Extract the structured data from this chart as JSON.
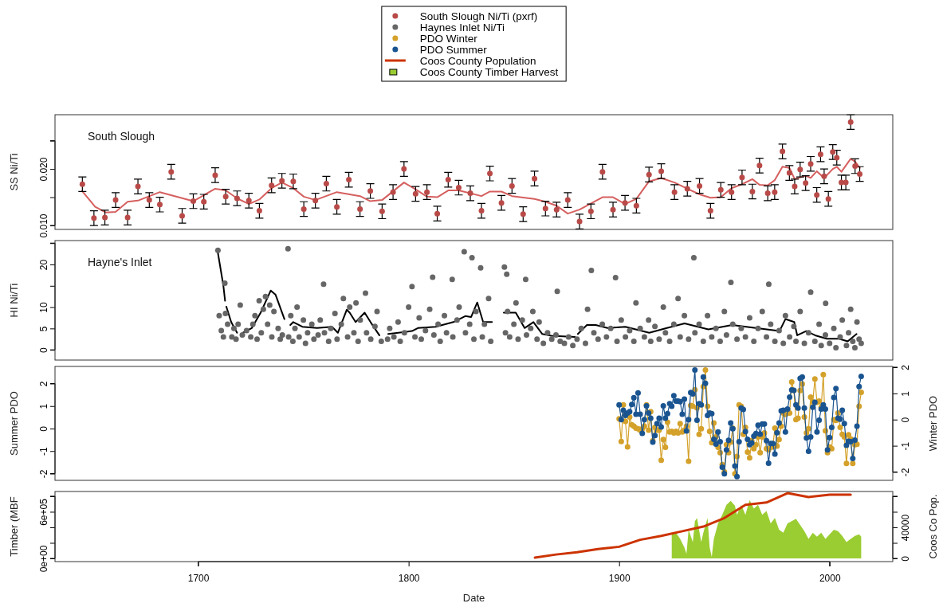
{
  "chart_data": [
    {
      "type": "scatter",
      "ylabel": "SS Ni/Ti",
      "annotations": [
        "South Slough"
      ],
      "legend": "top",
      "tick_labels": "y",
      "xlim": [
        1632,
        2030
      ],
      "ylim": [
        0.0093,
        0.0296
      ],
      "yticks": [
        {
          "value": 0.01,
          "label": "0.010"
        },
        {
          "value": 0.015,
          "label": null
        },
        {
          "value": 0.02,
          "label": "0.020"
        },
        {
          "value": 0.025,
          "label": null
        }
      ],
      "series": [
        {
          "name": "South Slough Ni/Ti (pxrf)",
          "color": "#b94a48",
          "x": [
            1645,
            1650.5,
            1655.7,
            1660.8,
            1666.5,
            1671.4,
            1676.8,
            1681.8,
            1687.2,
            1692.4,
            1697.7,
            1702.7,
            1708.1,
            1713.1,
            1718.5,
            1724.1,
            1729.1,
            1734.9,
            1739.8,
            1745.2,
            1750.2,
            1755.7,
            1760.9,
            1765.9,
            1771.6,
            1776.9,
            1781.8,
            1787.4,
            1792.6,
            1797.8,
            1803.3,
            1808.7,
            1813.6,
            1818.8,
            1823.8,
            1829.3,
            1834.6,
            1838.6,
            1844.1,
            1849.1,
            1854.4,
            1859.8,
            1865.0,
            1870.3,
            1875.6,
            1881.2,
            1886.6,
            1892.1,
            1897.1,
            1902.8,
            1908.2,
            1914.2,
            1920.0,
            1926.3,
            1932.4,
            1938.2,
            1943.4,
            1948.3,
            1953.4,
            1958.4,
            1963.3,
            1966.7,
            1970.6,
            1973.9,
            1977.6,
            1980.9,
            1983.4,
            1986.0,
            1988.6,
            1991.0,
            1993.9,
            1995.7,
            1997.4,
            1999.4,
            2001.5,
            2003.4,
            2005.6,
            2007.7,
            2010.0,
            2012.1,
            2014.3
          ],
          "values": [
            0.0173,
            0.0113,
            0.0114,
            0.0145,
            0.0114,
            0.0169,
            0.0145,
            0.0137,
            0.0195,
            0.0117,
            0.0143,
            0.0142,
            0.0189,
            0.0151,
            0.0148,
            0.0144,
            0.0126,
            0.0171,
            0.0179,
            0.0178,
            0.0129,
            0.0144,
            0.0174,
            0.0133,
            0.0181,
            0.0129,
            0.0161,
            0.0125,
            0.0159,
            0.02,
            0.0156,
            0.0159,
            0.0121,
            0.0181,
            0.0167,
            0.0157,
            0.0126,
            0.0192,
            0.014,
            0.017,
            0.012,
            0.0183,
            0.013,
            0.0128,
            0.0145,
            0.0107,
            0.0125,
            0.0195,
            0.0128,
            0.014,
            0.0135,
            0.019,
            0.0196,
            0.0159,
            0.0165,
            0.017,
            0.0126,
            0.0163,
            0.0159,
            0.0185,
            0.016,
            0.0206,
            0.0157,
            0.0159,
            0.0231,
            0.0193,
            0.0169,
            0.0199,
            0.0175,
            0.0209,
            0.0154,
            0.0226,
            0.0187,
            0.0147,
            0.023,
            0.022,
            0.0176,
            0.0176,
            0.0283,
            0.0205,
            0.0191
          ],
          "errors": [
            0.0013,
            0.0013,
            0.0013,
            0.0013,
            0.0013,
            0.0013,
            0.0013,
            0.0013,
            0.0013,
            0.0013,
            0.0013,
            0.0013,
            0.0013,
            0.0013,
            0.0013,
            0.0013,
            0.0013,
            0.0013,
            0.0013,
            0.0013,
            0.0013,
            0.0013,
            0.0013,
            0.0013,
            0.0013,
            0.0013,
            0.0013,
            0.0013,
            0.0013,
            0.0013,
            0.0013,
            0.0013,
            0.0013,
            0.0013,
            0.0013,
            0.0013,
            0.0013,
            0.0013,
            0.0013,
            0.0013,
            0.0013,
            0.0013,
            0.0013,
            0.0013,
            0.0013,
            0.0013,
            0.0013,
            0.0013,
            0.0013,
            0.0013,
            0.0013,
            0.0013,
            0.0013,
            0.0013,
            0.0013,
            0.0013,
            0.0013,
            0.0013,
            0.0013,
            0.0013,
            0.0013,
            0.0013,
            0.0013,
            0.0013,
            0.0013,
            0.0013,
            0.0013,
            0.0013,
            0.0013,
            0.0013,
            0.0013,
            0.0013,
            0.0013,
            0.0013,
            0.0013,
            0.0013,
            0.0013,
            0.0013,
            0.0013,
            0.0013,
            0.0013
          ]
        },
        {
          "type": "line",
          "color": "#d65f5f",
          "x": [
            1644.9,
            1651.1,
            1656.1,
            1660.8,
            1666.5,
            1671.4,
            1681.8,
            1697.7,
            1708.1,
            1713.1,
            1718.5,
            1724.1,
            1729.1,
            1734.9,
            1739.8,
            1745.2,
            1750.2,
            1755.7,
            1765.9,
            1776.9,
            1781.8,
            1787.4,
            1797.8,
            1803.3,
            1808.7,
            1813.6,
            1818.8,
            1823.8,
            1834.6,
            1838.6,
            1844.1,
            1849.1,
            1859.8,
            1865.0,
            1870.3,
            1875.6,
            1881.2,
            1892.1,
            1897.1,
            1902.8,
            1908.2,
            1914.2,
            1920.0,
            1926.3,
            1932.4,
            1938.2,
            1943.4,
            1948.3,
            1953.4,
            1958.4,
            1963.3,
            1966.7,
            1970.6,
            1973.9,
            1977.6,
            1980.9,
            1983.4,
            1988.6,
            1991.0,
            1993.9,
            1997.4,
            2001.5,
            2003.4,
            2005.6,
            2007.7,
            2010.0,
            2012.1,
            2014.3
          ],
          "values": [
            0.0161,
            0.0133,
            0.0123,
            0.0124,
            0.0142,
            0.0144,
            0.0159,
            0.0143,
            0.0165,
            0.0162,
            0.0148,
            0.0138,
            0.0146,
            0.0166,
            0.0176,
            0.0166,
            0.0151,
            0.0145,
            0.0159,
            0.0152,
            0.0143,
            0.0145,
            0.0176,
            0.0164,
            0.0151,
            0.015,
            0.0162,
            0.0162,
            0.0152,
            0.016,
            0.016,
            0.0152,
            0.0147,
            0.0142,
            0.0135,
            0.0121,
            0.0128,
            0.015,
            0.015,
            0.0138,
            0.0147,
            0.0178,
            0.0184,
            0.0176,
            0.0165,
            0.0155,
            0.0149,
            0.015,
            0.0166,
            0.0173,
            0.0182,
            0.0172,
            0.0171,
            0.018,
            0.0204,
            0.0202,
            0.0182,
            0.0188,
            0.0184,
            0.0196,
            0.0184,
            0.02,
            0.0204,
            0.0195,
            0.0206,
            0.0218,
            0.0213,
            0.0202
          ]
        }
      ]
    },
    {
      "type": "scatter",
      "ylabel": "HI Ni/Ti",
      "annotations": [
        "Hayne's Inlet"
      ],
      "legend": "top",
      "tick_labels": "y",
      "xlim": [
        1632,
        2030
      ],
      "ylim": [
        -2.4,
        25.6
      ],
      "yticks": [
        0,
        5,
        10,
        {
          "value": 15,
          "label": null
        },
        20,
        {
          "value": 25,
          "label": null
        }
      ],
      "series": [
        {
          "name": "Haynes Inlet Ni/Ti",
          "color": "#666666",
          "x": [
            1709.4,
            1710,
            1711,
            1712,
            1712.7,
            1713,
            1714,
            1716,
            1717,
            1718,
            1719,
            1720,
            1721,
            1723,
            1725,
            1726,
            1727,
            1728,
            1729,
            1730,
            1731,
            1732,
            1733,
            1734,
            1735,
            1736,
            1738,
            1739,
            1740,
            1742.7,
            1743,
            1744,
            1745,
            1746,
            1747,
            1748,
            1750,
            1751,
            1752,
            1754,
            1755,
            1757,
            1758,
            1759.6,
            1760,
            1762,
            1763,
            1765,
            1766,
            1768,
            1769,
            1771,
            1772,
            1774,
            1775,
            1776,
            1777,
            1779.5,
            1780,
            1782,
            1784,
            1785,
            1787,
            1790,
            1791,
            1793,
            1795,
            1796,
            1798,
            1800,
            1801.6,
            1803,
            1805,
            1806,
            1808,
            1810,
            1811.4,
            1812,
            1814,
            1815,
            1817,
            1818,
            1820.7,
            1821,
            1823,
            1824,
            1826.4,
            1827,
            1829,
            1830.1,
            1831,
            1832,
            1834.2,
            1835,
            1836,
            1838,
            1839,
            1845.5,
            1846,
            1846.6,
            1847,
            1848,
            1850,
            1851,
            1852,
            1854,
            1855.6,
            1856,
            1858,
            1859,
            1861,
            1862,
            1864,
            1866,
            1868,
            1870,
            1870.6,
            1872,
            1874,
            1876,
            1878,
            1880,
            1882,
            1884,
            1885,
            1886.8,
            1888,
            1890,
            1892,
            1894,
            1896,
            1898.3,
            1899,
            1901,
            1903,
            1905,
            1907,
            1908,
            1910,
            1912,
            1914,
            1915,
            1917,
            1919,
            1921,
            1922,
            1924,
            1926,
            1928,
            1929,
            1931,
            1933,
            1935.5,
            1936,
            1938,
            1940,
            1942,
            1944,
            1946,
            1948,
            1950,
            1951,
            1953.1,
            1954,
            1956,
            1958,
            1960,
            1962,
            1964,
            1966,
            1968,
            1970,
            1971.1,
            1972,
            1974,
            1976,
            1978,
            1979,
            1981,
            1983,
            1984,
            1986,
            1988,
            1990,
            1991,
            1993,
            1995,
            1996,
            1998,
            1998.1,
            2000,
            2002,
            2003,
            2005,
            2006,
            2008,
            2009,
            2010,
            2011,
            2012,
            2013,
            2014,
            2015
          ],
          "values": [
            23.3,
            8,
            4.5,
            3,
            15.6,
            8.5,
            6,
            3,
            5,
            2.5,
            6,
            10.5,
            3.5,
            4.5,
            3,
            6,
            8,
            2.5,
            11.5,
            4,
            9.5,
            12.5,
            6,
            10.5,
            3,
            9,
            5,
            2.5,
            3.5,
            23.7,
            3,
            8,
            2,
            5,
            10,
            3,
            7,
            1.5,
            4,
            6,
            2.5,
            3.5,
            7,
            15.4,
            4,
            2,
            5,
            8.5,
            2.5,
            6,
            12,
            3,
            10,
            4,
            11,
            2,
            7,
            13.3,
            4,
            2.5,
            5.5,
            9,
            2,
            2.5,
            5,
            3,
            6.5,
            2,
            4,
            10,
            14.8,
            3,
            7.5,
            2.5,
            4.5,
            9.5,
            17,
            3.5,
            6,
            2,
            8,
            4,
            16.5,
            3,
            7,
            10,
            23,
            4,
            6,
            21.6,
            2.5,
            9,
            19.2,
            3,
            6,
            12,
            2,
            19.4,
            4,
            17.7,
            9,
            3,
            6,
            11,
            2.5,
            7,
            16.5,
            3.5,
            5,
            9,
            2.5,
            6.5,
            1.5,
            4,
            2.5,
            3.5,
            13.7,
            2,
            1.5,
            3,
            1,
            2.5,
            5,
            1.5,
            9.5,
            18.6,
            4,
            2.5,
            6,
            3,
            5,
            16.9,
            2,
            7,
            3,
            4.5,
            2,
            11,
            5,
            3,
            7,
            2,
            5.5,
            2.5,
            10,
            4,
            2,
            6,
            12,
            3,
            8,
            2.5,
            21.6,
            4,
            6,
            2,
            8,
            3,
            5,
            2,
            9,
            3.5,
            15.8,
            6,
            2.5,
            5,
            3,
            7.5,
            2,
            5,
            9,
            3,
            15.4,
            6,
            2,
            4.5,
            1.5,
            8,
            3,
            5.5,
            2,
            9,
            1.5,
            4,
            13.5,
            2,
            6,
            1,
            3.5,
            10.9,
            1.5,
            5,
            0.5,
            3,
            7,
            1,
            4,
            9.5,
            2,
            0.5,
            6.5,
            2.5,
            1.5
          ]
        },
        {
          "type": "line",
          "color": "#000000",
          "x": [
            1709.2,
            1712.0,
            1712.8,
            1713.1,
            1713.4,
            1715.7,
            1718.5,
            1720,
            1721.3,
            1725.5,
            1729.7,
            1734.5,
            1736.8,
            1741.0,
            1742.5,
            1743.8,
            1745.2,
            1749.5,
            1756.5,
            1763.6,
            1766.4,
            1770.6,
            1772.0,
            1774.8,
            1779.1,
            1781.9,
            1786.1,
            1788,
            1790.3,
            1801.6,
            1804.4,
            1812.8,
            1821.3,
            1826.9,
            1829.7,
            1832.6,
            1835.4,
            1839.6,
            1842,
            1845.2,
            1850.9,
            1855.1,
            1859.3,
            1863.5,
            1867.8,
            1879.0,
            1879.7,
            1880.4,
            1884.7,
            1888.9,
            1894.5,
            1903.0,
            1914.3,
            1922.7,
            1931.1,
            1942.4,
            1953.7,
            1964.9,
            1976.2,
            1979.0,
            1983.2,
            1984.6,
            1988.9,
            1993.1,
            1998.7,
            2004.4,
            2008.6,
            2012.8
          ],
          "values": [
            23.3,
            15.0,
            11.5,
            null,
            10.1,
            6.5,
            4.0,
            null,
            4.0,
            5.1,
            8.7,
            13.9,
            12.9,
            7.2,
            null,
            5.8,
            6.5,
            5.4,
            5.1,
            5.4,
            4.0,
            9.4,
            8.7,
            6.5,
            8.7,
            6.5,
            3.4,
            null,
            3.7,
            4.4,
            5.1,
            5.4,
            6.5,
            7.9,
            7.7,
            11.1,
            6.5,
            6.5,
            null,
            8.7,
            8.7,
            5.1,
            6.5,
            3.7,
            3.3,
            3.0,
            null,
            3.7,
            5.8,
            5.8,
            5.1,
            5.4,
            4.0,
            5.1,
            6.2,
            4.8,
            5.8,
            5.1,
            4.4,
            7.2,
            6.5,
            3.4,
            4.4,
            3.4,
            2.6,
            2.6,
            2.0,
            3.7
          ]
        }
      ]
    },
    {
      "type": "line",
      "ylabel": "Summer PDO",
      "y2label": "Winter PDO",
      "legend": "top",
      "marker": "circle",
      "tick_labels": "y",
      "xlim": [
        1632,
        2030
      ],
      "ylim": [
        -2.3,
        2.76
      ],
      "yticks": [
        -2,
        -1,
        0,
        1,
        2
      ],
      "y2lim": [
        -2.32,
        2.03
      ],
      "y2ticks": [
        -2,
        -1,
        0,
        1,
        2
      ],
      "x": [
        1900,
        1901,
        1902,
        1903,
        1904,
        1905,
        1906,
        1907,
        1908,
        1909,
        1910,
        1911,
        1912,
        1913,
        1914,
        1915,
        1916,
        1917,
        1918,
        1919,
        1920,
        1921,
        1922,
        1923,
        1924,
        1925,
        1926,
        1927,
        1928,
        1929,
        1930,
        1931,
        1932,
        1933,
        1934,
        1935,
        1936,
        1937,
        1938,
        1939,
        1940,
        1941,
        1942,
        1943,
        1944,
        1945,
        1946,
        1947,
        1948,
        1949,
        1950,
        1951,
        1952,
        1953,
        1954,
        1955,
        1956,
        1957,
        1958,
        1959,
        1960,
        1961,
        1962,
        1963,
        1964,
        1965,
        1966,
        1967,
        1968,
        1969,
        1970,
        1971,
        1972,
        1973,
        1974,
        1975,
        1976,
        1977,
        1978,
        1979,
        1980,
        1981,
        1982,
        1983,
        1984,
        1985,
        1986,
        1987,
        1988,
        1989,
        1990,
        1991,
        1992,
        1993,
        1994,
        1995,
        1996,
        1997,
        1998,
        1999,
        2000,
        2001,
        2002,
        2003,
        2004,
        2005,
        2006,
        2007,
        2008,
        2009,
        2010,
        2011,
        2012,
        2013,
        2014,
        2015
      ],
      "series": [
        {
          "name": "PDO Winter",
          "color": "#d4a12a",
          "axis": "y2",
          "values": [
            0.03,
            -0.84,
            0.56,
            -0.07,
            -1.04,
            0.1,
            -0.2,
            -0.25,
            -0.33,
            -0.35,
            -0.4,
            -0.35,
            -0.25,
            0.56,
            -0.4,
            0.3,
            -0.81,
            -0.3,
            -0.4,
            -0.4,
            -1.55,
            -0.76,
            -1.06,
            -0.1,
            -0.47,
            -0.45,
            -0.51,
            -0.45,
            -0.51,
            -0.15,
            -0.47,
            -0.4,
            -0.25,
            -1.59,
            0.54,
            0.51,
            1.14,
            0.45,
            -0.56,
            -0.35,
            1.26,
            1.89,
            0.51,
            -0.45,
            -0.88,
            -0.13,
            -0.66,
            -1.06,
            -1.26,
            -1.72,
            -1.99,
            -0.96,
            -1.26,
            -0.86,
            -0.33,
            -2.07,
            -1.41,
            0.56,
            0.51,
            -0.56,
            -0.3,
            -1.24,
            -1.46,
            -0.81,
            -1.11,
            -0.96,
            -0.66,
            -1.26,
            -0.66,
            -0.51,
            -1.11,
            -1.16,
            -1.06,
            -1.04,
            -0.33,
            -1.01,
            -0.76,
            -0.25,
            0.25,
            0.2,
            0.25,
            0.25,
            1.44,
            1.11,
            0.0,
            0.05,
            1.11,
            1.36,
            0.1,
            -0.51,
            -0.35,
            0.86,
            0.68,
            1.55,
            0.66,
            0.71,
            0.47,
            1.72,
            -0.43,
            -1.26,
            -1.04,
            -1.11,
            0.0,
            -0.03,
            0.25,
            -0.3,
            -0.56,
            -0.66,
            -1.67,
            -0.58,
            -0.74,
            -1.67,
            -0.96,
            -0.94,
            0.51,
            1.04
          ]
        },
        {
          "name": "PDO Summer",
          "color": "#1a5490",
          "values": [
            1.05,
            0.4,
            0.81,
            0.58,
            0.69,
            0.75,
            1.07,
            1.37,
            0.64,
            1.58,
            0.64,
            -0.21,
            0.4,
            1.01,
            0.69,
            0.46,
            -0.6,
            -0.31,
            0.22,
            0.46,
            0.07,
            1.01,
            0.46,
            0.66,
            1.11,
            0.99,
            1.46,
            1.22,
            1.22,
            1.19,
            0.64,
            1.31,
            -0.11,
            0.4,
            1.6,
            1.54,
            2.6,
            0.37,
            1.11,
            1.05,
            2.29,
            2.01,
            0.58,
            0.69,
            0.66,
            -0.48,
            -0.69,
            -0.15,
            -0.58,
            -1.72,
            -2.01,
            -0.95,
            -0.52,
            0.25,
            -0.01,
            -1.66,
            -2.13,
            -0.58,
            0.91,
            0.85,
            -0.13,
            -0.48,
            -0.72,
            -0.64,
            -0.34,
            -0.22,
            0.15,
            -0.25,
            0.2,
            0.2,
            -0.54,
            -1.54,
            -0.66,
            -0.66,
            -1.13,
            -0.19,
            0.25,
            0.79,
            0.81,
            -0.15,
            0.87,
            1.4,
            1.72,
            1.7,
            1.05,
            0.91,
            2.23,
            2.29,
            0.91,
            -0.42,
            -1.01,
            -0.37,
            0.95,
            1.17,
            -0.15,
            0.37,
            0.87,
            1.05,
            0.87,
            -0.95,
            -0.4,
            0.05,
            1.38,
            1.78,
            0.46,
            0.42,
            0.81,
            0.22,
            -0.74,
            -0.57,
            -0.58,
            -1.33,
            -0.51,
            0.11,
            1.87,
            2.32
          ]
        }
      ]
    },
    {
      "type": "area",
      "ylabel": "Timber (MBF",
      "y2label": "Coos Co Pop.",
      "xlabel": "Date",
      "legend": "top",
      "xlim": [
        1632,
        2030
      ],
      "xticks": [
        1700,
        1800,
        1900,
        2000
      ],
      "ylim": [
        -41000,
        861000
      ],
      "yticks": [
        {
          "value": 0,
          "label": "0e+00"
        },
        {
          "value": 200000,
          "label": null
        },
        {
          "value": 400000,
          "label": null
        },
        {
          "value": 600000,
          "label": "6e+05"
        },
        {
          "value": 800000,
          "label": null
        }
      ],
      "y2lim": [
        -4100,
        86150
      ],
      "y2ticks": [
        0,
        {
          "value": 20000,
          "label": null
        },
        40000,
        {
          "value": 60000,
          "label": null
        },
        {
          "value": 80000,
          "label": null
        }
      ],
      "series": [
        {
          "name": "Coos County Population",
          "type": "line",
          "axis": "y2",
          "color": "#cc3300",
          "x": [
            1860,
            1870,
            1880,
            1890,
            1900,
            1910,
            1920,
            1930,
            1940,
            1950,
            1960,
            1970,
            1980,
            1990,
            2000,
            2010
          ],
          "values": [
            1000,
            5000,
            8000,
            12000,
            15000,
            24000,
            29000,
            35000,
            41000,
            52000,
            69000,
            72000,
            84000,
            79000,
            82000,
            82000
          ]
        },
        {
          "name": "Coos County Timber Harvest",
          "color": "#9acd32",
          "x": [
            1925,
            1927,
            1929,
            1931,
            1932,
            1933,
            1935,
            1936,
            1937,
            1939,
            1940,
            1942,
            1943,
            1944,
            1945,
            1947,
            1949,
            1951,
            1953,
            1955,
            1956,
            1958,
            1960,
            1962,
            1964,
            1966,
            1968,
            1970,
            1972,
            1974,
            1976,
            1978,
            1980,
            1982,
            1984,
            1986,
            1988,
            1990,
            1992,
            1994,
            1996,
            1998,
            2000,
            2002,
            2004,
            2006,
            2008,
            2010,
            2012,
            2014,
            2015
          ],
          "values": [
            310000,
            330000,
            250000,
            140000,
            60000,
            370000,
            210000,
            480000,
            520000,
            210000,
            330000,
            520000,
            140000,
            20000,
            250000,
            450000,
            560000,
            690000,
            740000,
            680000,
            560000,
            690000,
            560000,
            750000,
            640000,
            690000,
            560000,
            610000,
            450000,
            520000,
            370000,
            330000,
            450000,
            480000,
            510000,
            430000,
            350000,
            250000,
            330000,
            280000,
            330000,
            250000,
            310000,
            370000,
            350000,
            290000,
            210000,
            250000,
            290000,
            310000,
            280000
          ]
        }
      ]
    }
  ]
}
